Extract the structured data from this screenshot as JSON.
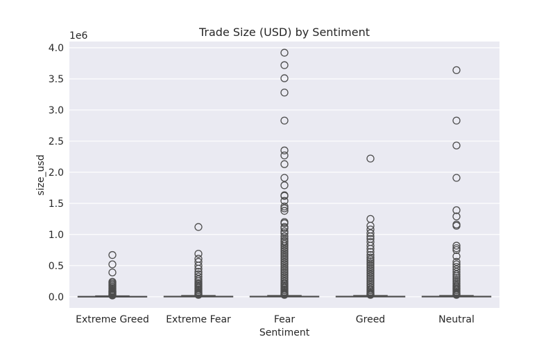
{
  "chart_data": {
    "type": "box",
    "title": "Trade Size (USD) by Sentiment",
    "xlabel": "Sentiment",
    "ylabel": "size_usd",
    "y_scale_label": "1e6",
    "ylim": [
      -0.18,
      4.1
    ],
    "y_ticks": [
      0.0,
      0.5,
      1.0,
      1.5,
      2.0,
      2.5,
      3.0,
      3.5,
      4.0
    ],
    "y_tick_labels": [
      "0.0",
      "0.5",
      "1.0",
      "1.5",
      "2.0",
      "2.5",
      "3.0",
      "3.5",
      "4.0"
    ],
    "grid": true,
    "categories": [
      "Extreme Greed",
      "Extreme Fear",
      "Fear",
      "Greed",
      "Neutral"
    ],
    "boxes": [
      {
        "category": "Extreme Greed",
        "median": 0.002,
        "q1": 0.0,
        "q3": 0.006,
        "whisker_low": 0.0,
        "whisker_high": 0.015,
        "outliers": [
          0.67,
          0.52,
          0.39,
          0.24,
          0.22,
          0.2,
          0.18,
          0.16,
          0.14,
          0.12,
          0.1,
          0.09,
          0.08,
          0.07,
          0.06,
          0.05,
          0.04,
          0.03,
          0.02
        ]
      },
      {
        "category": "Extreme Fear",
        "median": 0.002,
        "q1": 0.0,
        "q3": 0.008,
        "whisker_low": 0.0,
        "whisker_high": 0.02,
        "outliers": [
          1.12,
          0.69,
          0.61,
          0.56,
          0.5,
          0.45,
          0.4,
          0.36,
          0.32,
          0.28,
          0.25,
          0.22,
          0.2,
          0.18,
          0.16,
          0.14,
          0.12,
          0.1,
          0.08,
          0.06,
          0.05,
          0.04,
          0.03
        ]
      },
      {
        "category": "Fear",
        "median": 0.002,
        "q1": 0.0,
        "q3": 0.008,
        "whisker_low": 0.0,
        "whisker_high": 0.02,
        "outliers": [
          3.92,
          3.72,
          3.51,
          3.28,
          2.83,
          2.35,
          2.27,
          2.13,
          1.91,
          1.79,
          1.63,
          1.62,
          1.54,
          1.45,
          1.42,
          1.38,
          1.2,
          1.18,
          1.12,
          1.1,
          1.05,
          1.02,
          0.97,
          0.93,
          0.9,
          0.88,
          0.85,
          0.82,
          0.79,
          0.76,
          0.73,
          0.7,
          0.67,
          0.64,
          0.61,
          0.58,
          0.55,
          0.52,
          0.49,
          0.46,
          0.43,
          0.4,
          0.37,
          0.34,
          0.31,
          0.28,
          0.25,
          0.22,
          0.2,
          0.18,
          0.16,
          0.14,
          0.12,
          0.1,
          0.08,
          0.06,
          0.05,
          0.04,
          0.03
        ]
      },
      {
        "category": "Greed",
        "median": 0.002,
        "q1": 0.0,
        "q3": 0.008,
        "whisker_low": 0.0,
        "whisker_high": 0.02,
        "outliers": [
          2.22,
          1.25,
          1.14,
          1.08,
          1.02,
          0.97,
          0.93,
          0.88,
          0.82,
          0.77,
          0.72,
          0.67,
          0.63,
          0.6,
          0.57,
          0.54,
          0.51,
          0.48,
          0.45,
          0.42,
          0.39,
          0.36,
          0.33,
          0.3,
          0.27,
          0.24,
          0.21,
          0.18,
          0.15,
          0.12,
          0.1,
          0.08,
          0.06,
          0.05,
          0.04,
          0.03
        ]
      },
      {
        "category": "Neutral",
        "median": 0.002,
        "q1": 0.0,
        "q3": 0.008,
        "whisker_low": 0.0,
        "whisker_high": 0.02,
        "outliers": [
          3.64,
          2.83,
          2.43,
          1.91,
          1.39,
          1.29,
          1.16,
          1.14,
          0.82,
          0.78,
          0.75,
          0.65,
          0.56,
          0.52,
          0.48,
          0.44,
          0.4,
          0.36,
          0.33,
          0.3,
          0.27,
          0.24,
          0.21,
          0.18,
          0.16,
          0.14,
          0.12,
          0.1,
          0.08,
          0.06,
          0.05,
          0.04,
          0.03
        ]
      }
    ],
    "colors": {
      "background": "#eaeaf2",
      "grid": "#ffffff",
      "box_fill": "#eaeaf2",
      "box_edge": "#4d4d4d",
      "text": "#262626"
    }
  }
}
